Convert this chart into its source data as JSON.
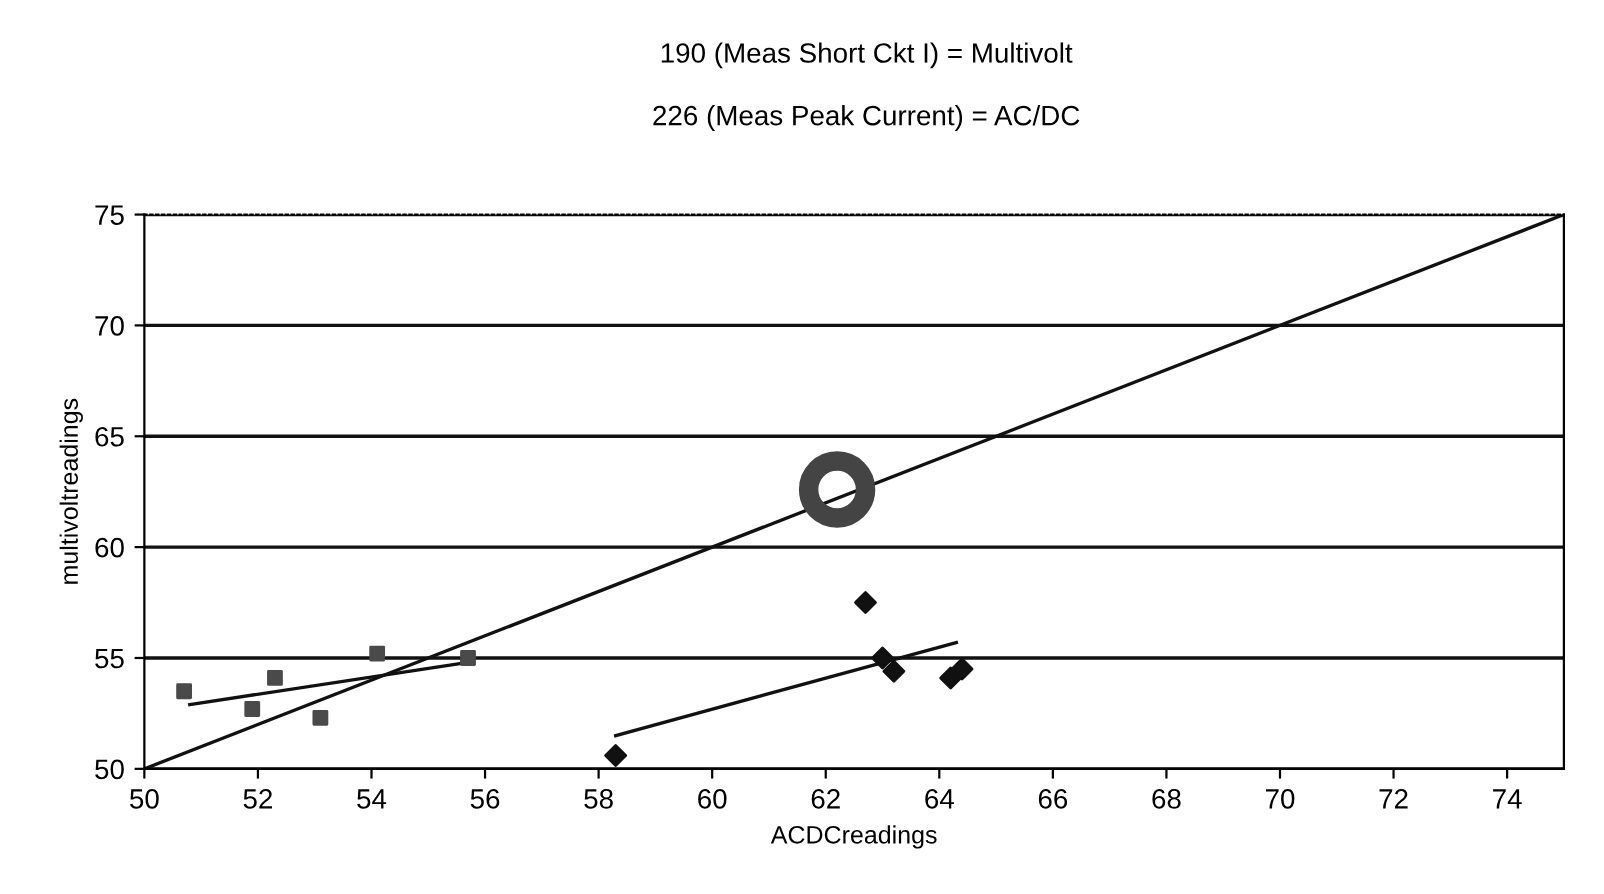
{
  "chart_data": {
    "type": "scatter",
    "title": "190 (Meas Short Ckt I) = Multivolt",
    "subtitle": "226 (Meas Peak Current) = AC/DC",
    "xlabel": "ACDCreadings",
    "ylabel": "multivoltreadings",
    "xlim": [
      50,
      75
    ],
    "ylim": [
      50,
      75
    ],
    "xticks": [
      50,
      52,
      54,
      56,
      58,
      60,
      62,
      64,
      66,
      68,
      70,
      72,
      74
    ],
    "yticks": [
      50,
      55,
      60,
      65,
      70,
      75
    ],
    "grid": "y",
    "legend": false,
    "series": [
      {
        "marker": "square",
        "color": "#4a4a4a",
        "x": [
          50.7,
          51.9,
          52.3,
          53.1,
          54.1,
          55.7
        ],
        "values": [
          53.5,
          52.7,
          54.1,
          52.3,
          55.2,
          55.0
        ]
      },
      {
        "marker": "diamond",
        "color": "#111111",
        "x": [
          58.3,
          62.7,
          63.0,
          63.2,
          64.2,
          64.4
        ],
        "values": [
          50.6,
          57.5,
          55.0,
          54.4,
          54.1,
          54.5
        ]
      },
      {
        "type": "line",
        "marker": "none",
        "color": "#111111",
        "x": [
          50.8,
          55.7
        ],
        "values": [
          52.9,
          54.8
        ]
      },
      {
        "type": "line",
        "marker": "none",
        "color": "#111111",
        "x": [
          58.3,
          64.3
        ],
        "values": [
          51.5,
          55.7
        ]
      },
      {
        "type": "line",
        "marker": "none",
        "color": "#111111",
        "x": [
          50,
          75
        ],
        "values": [
          50,
          75
        ]
      },
      {
        "marker": "circle",
        "color": "#444444",
        "x": [
          62.2
        ],
        "values": [
          62.6
        ]
      }
    ]
  }
}
